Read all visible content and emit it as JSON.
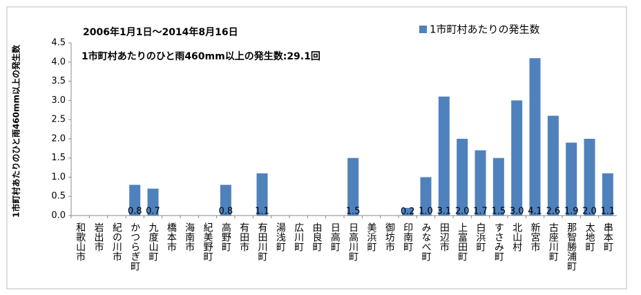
{
  "chart_data": {
    "type": "bar",
    "title": "2006年1月1日～2014年8月16日",
    "annotation": "1市町村あたりのひと雨460mm以上の発生数:29.1回",
    "y_label": "1市町村あたりのひと雨460mm以上の発生数",
    "categories": [
      "和歌山市",
      "岩出市",
      "紀の川市",
      "かつらぎ町",
      "九度山町",
      "橋本市",
      "海南市",
      "紀美野町",
      "高野町",
      "有田市",
      "有田川町",
      "湯浅町",
      "広川町",
      "由良町",
      "日高町",
      "日高川町",
      "美浜町",
      "御坊市",
      "印南町",
      "みなべ町",
      "田辺市",
      "上富田町",
      "白浜町",
      "すさみ町",
      "北山村",
      "新宮市",
      "古座川町",
      "那智勝浦町",
      "太地町",
      "串本町"
    ],
    "series": [
      {
        "name": "1市町村あたりの発生数",
        "color": "#4f81bd",
        "values": [
          0,
          0,
          0,
          0.8,
          0.7,
          0,
          0,
          0,
          0.8,
          0,
          1.1,
          0,
          0,
          0,
          0,
          1.5,
          0,
          0,
          0.2,
          1.0,
          3.1,
          2.0,
          1.7,
          1.5,
          3.0,
          4.1,
          2.6,
          1.9,
          2.0,
          1.1
        ],
        "value_labels": [
          null,
          null,
          null,
          "0.8",
          "0.7",
          null,
          null,
          null,
          "0.8",
          null,
          "1.1",
          null,
          null,
          null,
          null,
          "1.5",
          null,
          null,
          "0.2",
          "1.0",
          "3.1",
          "2.0",
          "1.7",
          "1.5",
          "3.0",
          "4.1",
          "2.6",
          "1.9",
          "2.0",
          "1.1"
        ]
      }
    ],
    "ylim": [
      0,
      4.5
    ],
    "yticks": [
      {
        "value": 0,
        "label": "0.0"
      },
      {
        "value": 0.5,
        "label": "0.5"
      },
      {
        "value": 1,
        "label": "1.0"
      },
      {
        "value": 1.5,
        "label": "1.5"
      },
      {
        "value": 2,
        "label": "2.0"
      },
      {
        "value": 2.5,
        "label": "2.5"
      },
      {
        "value": 3,
        "label": "3.0"
      },
      {
        "value": 3.5,
        "label": "3.5"
      },
      {
        "value": 4,
        "label": "4.0"
      },
      {
        "value": 4.5,
        "label": "4.5"
      }
    ],
    "legend": "top-right"
  }
}
